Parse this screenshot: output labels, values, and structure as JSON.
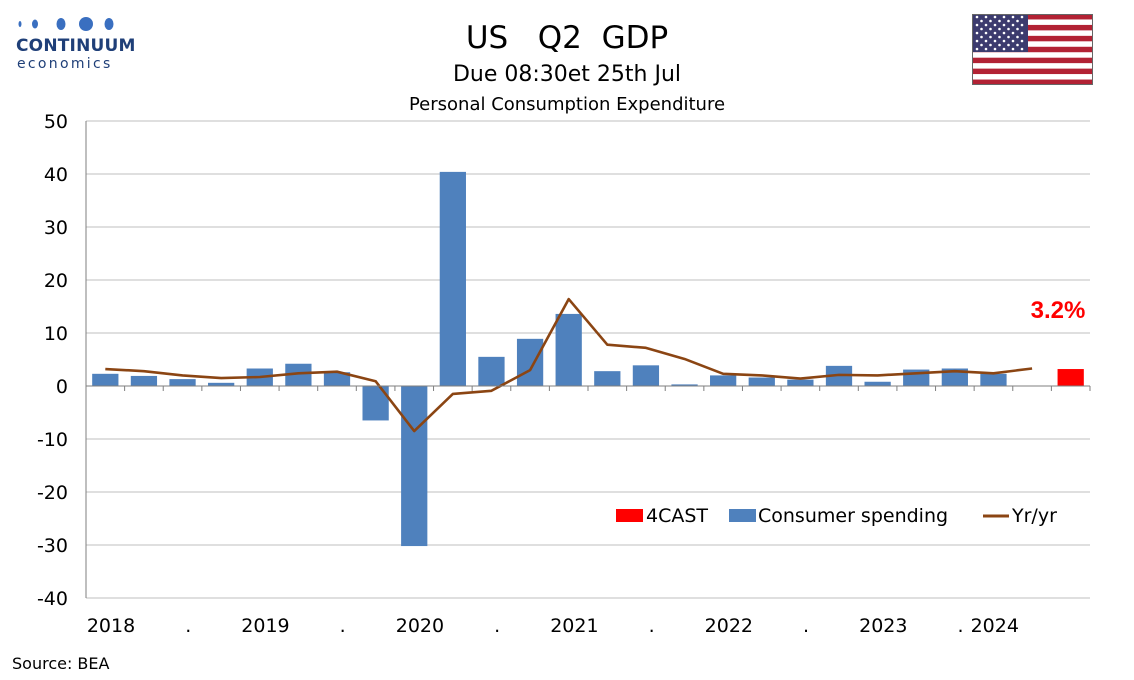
{
  "logo": {
    "name": "CONTINUUM",
    "sub": "economics"
  },
  "header": {
    "title": "US   Q2  GDP",
    "subtitle": "Due 08:30et 25th Jul",
    "chart_title": "Personal Consumption Expenditure"
  },
  "flag": {
    "icon": "us-flag-icon"
  },
  "source": "Source: BEA",
  "colors": {
    "bar": "#4f81bd",
    "forecast": "#ff0000",
    "line": "#8b4513",
    "grid": "#bfbfbf",
    "annotation": "#ff0000"
  },
  "chart_data": {
    "type": "bar",
    "title": "Personal Consumption Expenditure",
    "xlabel": "",
    "ylabel": "",
    "ylim": [
      -40,
      50
    ],
    "yticks": [
      50,
      40,
      30,
      20,
      10,
      0,
      -10,
      -20,
      -30,
      -40
    ],
    "grid": true,
    "legend_position": "bottom-right",
    "x_tick_labels": [
      "2018",
      ".",
      "2019",
      ".",
      "2020",
      ".",
      "2021",
      ".",
      "2022",
      ".",
      "2023",
      ".",
      "2024"
    ],
    "categories": [
      "2018Q1",
      "2018Q2",
      "2018Q3",
      "2018Q4",
      "2019Q1",
      "2019Q2",
      "2019Q3",
      "2019Q4",
      "2020Q1",
      "2020Q2",
      "2020Q3",
      "2020Q4",
      "2021Q1",
      "2021Q2",
      "2021Q3",
      "2021Q4",
      "2022Q1",
      "2022Q2",
      "2022Q3",
      "2022Q4",
      "2023Q1",
      "2023Q2",
      "2023Q3",
      "2023Q4",
      "2024Q1",
      "2024Q2"
    ],
    "series": [
      {
        "name": "Consumer spending",
        "kind": "bar",
        "values": [
          2.3,
          1.9,
          1.3,
          0.6,
          3.3,
          4.2,
          2.6,
          -6.5,
          -30.2,
          40.4,
          5.5,
          8.9,
          13.6,
          2.8,
          3.9,
          0.3,
          2.0,
          1.6,
          1.2,
          3.8,
          0.8,
          3.1,
          3.3,
          2.3,
          null,
          null
        ]
      },
      {
        "name": "4CAST",
        "kind": "bar",
        "values": [
          null,
          null,
          null,
          null,
          null,
          null,
          null,
          null,
          null,
          null,
          null,
          null,
          null,
          null,
          null,
          null,
          null,
          null,
          null,
          null,
          null,
          null,
          null,
          null,
          null,
          3.2
        ]
      },
      {
        "name": "Yr/yr",
        "kind": "line",
        "values": [
          3.2,
          2.8,
          2.0,
          1.5,
          1.7,
          2.4,
          2.7,
          0.9,
          -8.5,
          -1.5,
          -0.9,
          3.0,
          16.4,
          7.8,
          7.2,
          5.1,
          2.3,
          2.0,
          1.4,
          2.1,
          2.0,
          2.4,
          2.8,
          2.4,
          3.3,
          null
        ]
      }
    ],
    "annotation": "3.2%"
  }
}
